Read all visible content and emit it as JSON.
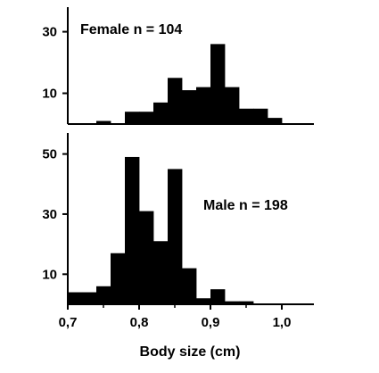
{
  "chart_data": {
    "type": "bar",
    "title": "",
    "xlabel": "Body size (cm)",
    "x_tick_labels": [
      "0,7",
      "0,8",
      "0,9",
      "1,0"
    ],
    "x_tick_values": [
      0.7,
      0.8,
      0.9,
      1.0
    ],
    "xlim": [
      0.7,
      1.045
    ],
    "bin_width": 0.02,
    "bin_starts": [
      0.7,
      0.72,
      0.74,
      0.76,
      0.78,
      0.8,
      0.82,
      0.84,
      0.86,
      0.88,
      0.9,
      0.92,
      0.94,
      0.96,
      0.98,
      1.0
    ],
    "grid": false,
    "panels": [
      {
        "label": "Female n = 104",
        "y_tick_labels": [
          "10",
          "30"
        ],
        "y_tick_values": [
          10,
          30
        ],
        "ylim": [
          0,
          38
        ],
        "values": [
          0,
          0,
          1,
          0,
          4,
          4,
          7,
          15,
          11,
          12,
          26,
          12,
          5,
          5,
          2,
          0
        ]
      },
      {
        "label": "Male n = 198",
        "y_tick_labels": [
          "10",
          "30",
          "50"
        ],
        "y_tick_values": [
          10,
          30,
          50
        ],
        "ylim": [
          0,
          57
        ],
        "values": [
          4,
          4,
          6,
          17,
          49,
          31,
          21,
          45,
          12,
          2,
          5,
          1,
          1,
          0,
          0,
          0
        ]
      }
    ]
  }
}
